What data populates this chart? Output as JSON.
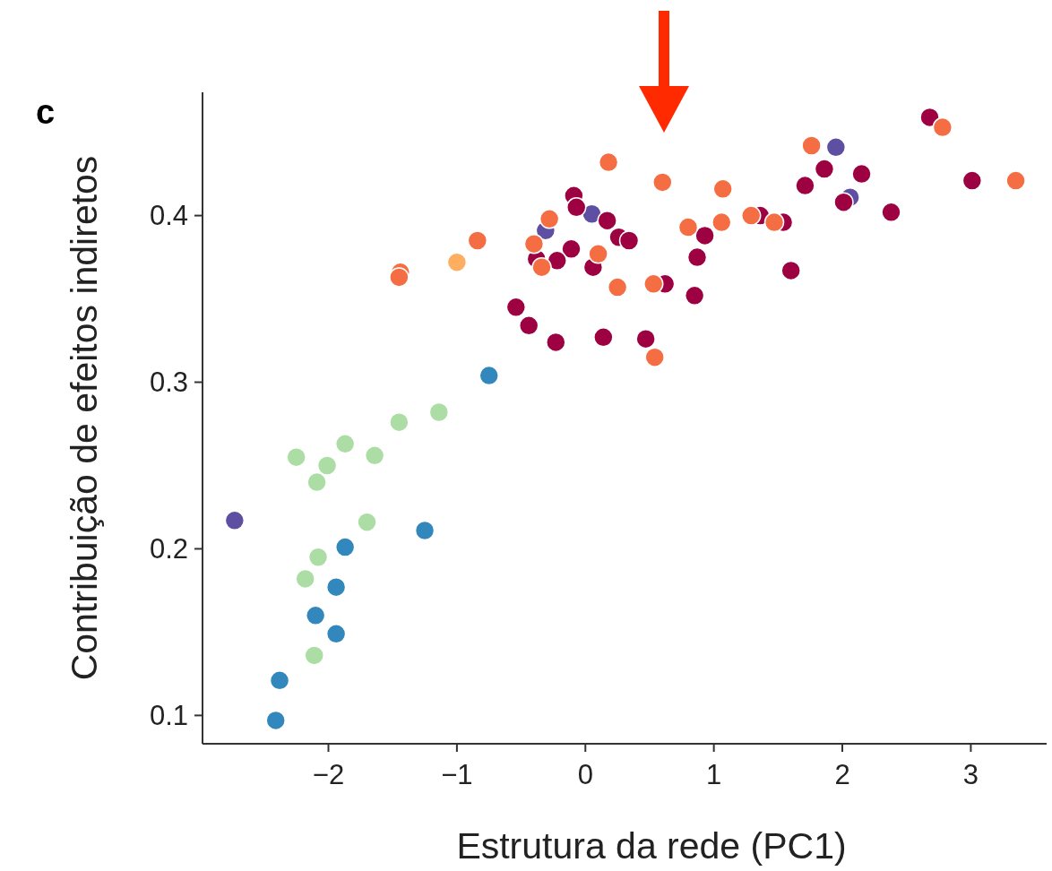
{
  "chart_data": {
    "type": "scatter",
    "xlabel": "Estrutura da rede (PC1)",
    "ylabel": "Contribuição de efeitos indiretos",
    "annotations": [
      "c"
    ],
    "xlim": [
      -2.98,
      3.59
    ],
    "xticks": [
      {
        "value": -2,
        "label": "−2"
      },
      {
        "value": -1,
        "label": "−1"
      },
      0,
      1,
      2,
      3
    ],
    "ylim": [
      0.083,
      0.474
    ],
    "yticks": [
      0.1,
      0.2,
      0.3,
      0.4
    ],
    "grid": false,
    "marker": "circle",
    "series": [
      {
        "color": "#abdda4",
        "x": [
          -1.14,
          -1.45,
          -1.87,
          -2.25,
          -1.64,
          -2.01,
          -2.09,
          -1.7,
          -2.08,
          -2.18,
          -2.11
        ],
        "values": [
          0.282,
          0.276,
          0.263,
          0.255,
          0.256,
          0.25,
          0.24,
          0.216,
          0.195,
          0.182,
          0.136
        ]
      },
      {
        "color": "#3288bd",
        "x": [
          -0.75,
          -1.25,
          -1.87,
          -1.94,
          -2.1,
          -1.94,
          -2.38,
          -2.41
        ],
        "values": [
          0.304,
          0.211,
          0.201,
          0.177,
          0.16,
          0.149,
          0.121,
          0.097
        ]
      },
      {
        "color": "#5e4fa2",
        "x": [
          -2.73,
          0.05,
          -0.31,
          1.95,
          2.06
        ],
        "values": [
          0.217,
          0.401,
          0.391,
          0.441,
          0.411
        ]
      },
      {
        "color": "#fdae61",
        "x": [
          -1.0
        ],
        "values": [
          0.372
        ]
      },
      {
        "color": "#9e0142",
        "x": [
          2.68,
          1.86,
          2.15,
          1.71,
          3.01,
          2.01,
          2.38,
          1.36,
          1.54,
          1.6,
          -0.09,
          -0.07,
          0.17,
          0.26,
          0.34,
          -0.11,
          -0.38,
          -0.22,
          0.06,
          0.93,
          0.87,
          0.62,
          0.85,
          -0.54,
          -0.44,
          -0.23,
          0.14,
          0.47
        ],
        "values": [
          0.459,
          0.428,
          0.425,
          0.418,
          0.421,
          0.408,
          0.402,
          0.4,
          0.396,
          0.367,
          0.412,
          0.405,
          0.397,
          0.387,
          0.385,
          0.38,
          0.374,
          0.373,
          0.369,
          0.388,
          0.375,
          0.359,
          0.352,
          0.345,
          0.334,
          0.324,
          0.327,
          0.326
        ]
      },
      {
        "color": "#f46d43",
        "x": [
          0.18,
          0.6,
          1.07,
          -0.28,
          0.8,
          1.06,
          -0.84,
          -0.4,
          0.1,
          -0.34,
          -1.44,
          -1.45,
          0.25,
          0.53,
          0.54,
          1.76,
          2.78,
          3.35,
          1.29,
          1.47
        ],
        "values": [
          0.432,
          0.42,
          0.416,
          0.398,
          0.393,
          0.396,
          0.385,
          0.383,
          0.377,
          0.369,
          0.366,
          0.363,
          0.357,
          0.359,
          0.315,
          0.442,
          0.453,
          0.421,
          0.4,
          0.396
        ]
      }
    ]
  }
}
